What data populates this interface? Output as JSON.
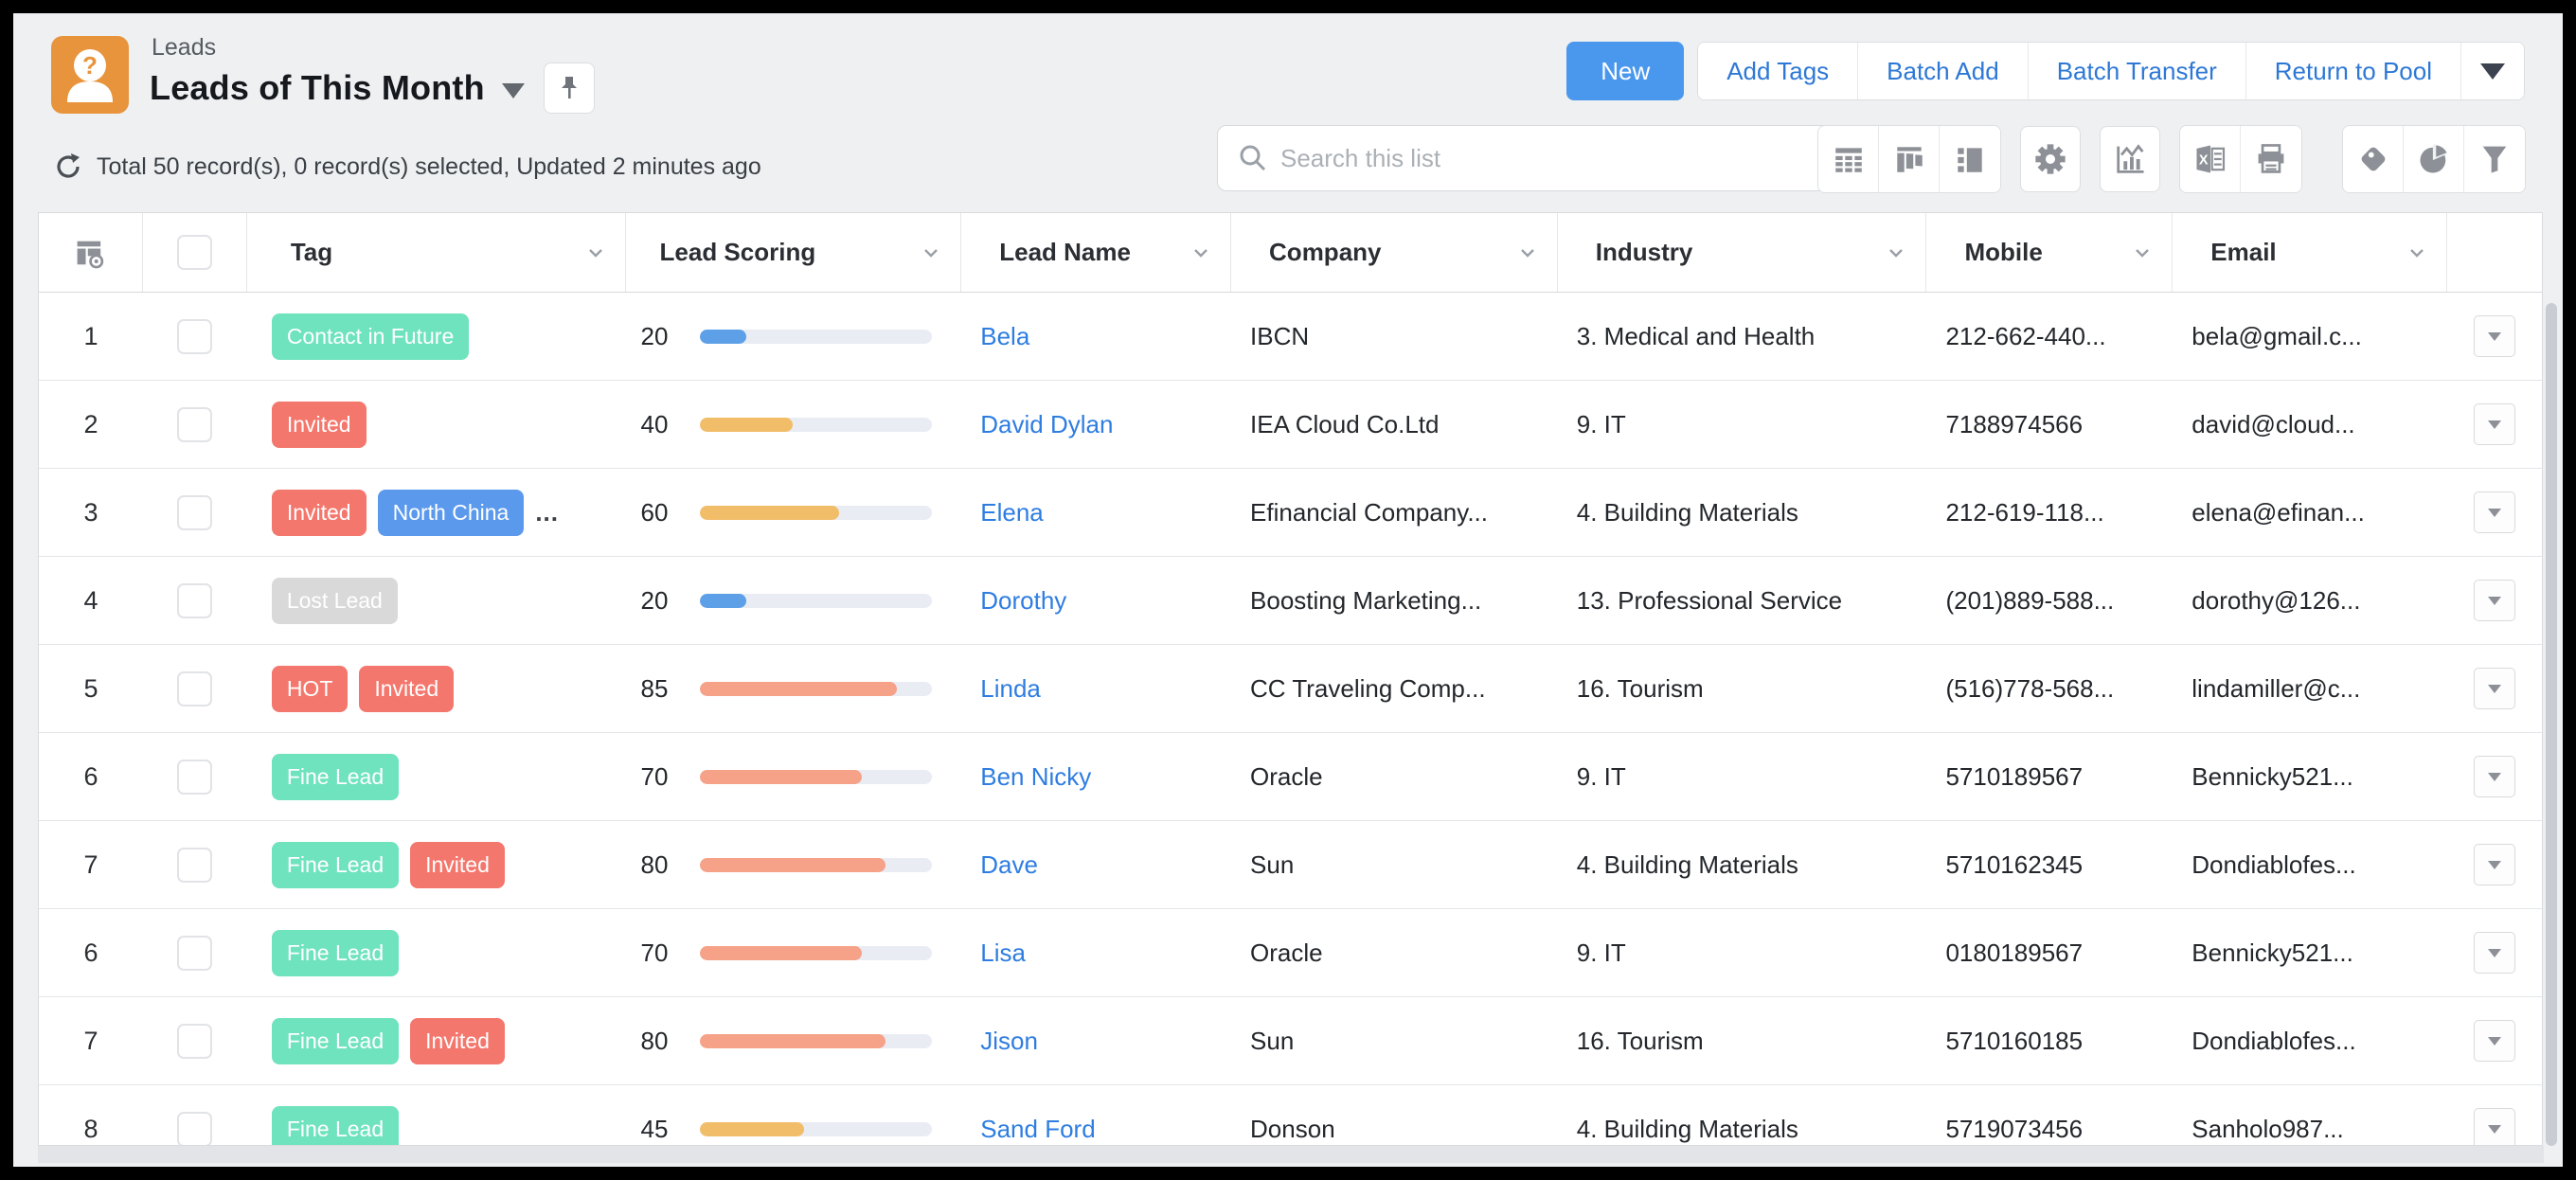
{
  "header": {
    "breadcrumb": "Leads",
    "title": "Leads of This Month",
    "status": "Total 50 record(s), 0 record(s) selected, Updated 2 minutes ago",
    "new_button": "New",
    "action_buttons": [
      "Add Tags",
      "Batch Add",
      "Batch Transfer",
      "Return to Pool"
    ],
    "search_placeholder": "Search this list"
  },
  "toolbar": {
    "icons": [
      "table-view-icon",
      "kanban-view-icon",
      "panel-view-icon",
      "settings-gear-icon",
      "chart-icon",
      "excel-export-icon",
      "print-icon",
      "tag-icon",
      "pie-chart-icon",
      "filter-funnel-icon"
    ]
  },
  "colors": {
    "accent_blue": "#4a97ee",
    "link_blue": "#2e7de1",
    "tag_green": "#6fe3bd",
    "tag_red": "#f4776d",
    "tag_blue": "#5b99ec",
    "tag_gray": "#d9d9d9",
    "bar_blue": "#5da0e8",
    "bar_orange": "#f2bd69",
    "bar_coral": "#f5a289"
  },
  "table": {
    "columns": [
      "Tag",
      "Lead Scoring",
      "Lead Name",
      "Company",
      "Industry",
      "Mobile",
      "Email"
    ],
    "rows": [
      {
        "index": "1",
        "tags": [
          {
            "label": "Contact in Future",
            "color": "green"
          }
        ],
        "more_tags": false,
        "score": 20,
        "score_color": "blue",
        "name": "Bela",
        "company": "IBCN",
        "industry": "3. Medical and Health",
        "mobile": "212-662-440...",
        "email": "bela@gmail.c..."
      },
      {
        "index": "2",
        "tags": [
          {
            "label": "Invited",
            "color": "red"
          }
        ],
        "more_tags": false,
        "score": 40,
        "score_color": "orange",
        "name": "David Dylan",
        "company": "IEA Cloud Co.Ltd",
        "industry": "9. IT",
        "mobile": "7188974566",
        "email": "david@cloud..."
      },
      {
        "index": "3",
        "tags": [
          {
            "label": "Invited",
            "color": "red"
          },
          {
            "label": "North China",
            "color": "blue"
          }
        ],
        "more_tags": true,
        "score": 60,
        "score_color": "orange",
        "name": "Elena",
        "company": "Efinancial Company...",
        "industry": "4. Building Materials",
        "mobile": "212-619-118...",
        "email": "elena@efinan..."
      },
      {
        "index": "4",
        "tags": [
          {
            "label": "Lost Lead",
            "color": "gray"
          }
        ],
        "more_tags": false,
        "score": 20,
        "score_color": "blue",
        "name": "Dorothy",
        "company": "Boosting Marketing...",
        "industry": "13. Professional Service",
        "mobile": "(201)889-588...",
        "email": "dorothy@126..."
      },
      {
        "index": "5",
        "tags": [
          {
            "label": "HOT",
            "color": "red"
          },
          {
            "label": "Invited",
            "color": "red"
          }
        ],
        "more_tags": false,
        "score": 85,
        "score_color": "coral",
        "name": "Linda",
        "company": "CC Traveling Comp...",
        "industry": "16. Tourism",
        "mobile": "(516)778-568...",
        "email": "lindamiller@c..."
      },
      {
        "index": "6",
        "tags": [
          {
            "label": "Fine Lead",
            "color": "green"
          }
        ],
        "more_tags": false,
        "score": 70,
        "score_color": "coral",
        "name": "Ben Nicky",
        "company": "Oracle",
        "industry": "9. IT",
        "mobile": "5710189567",
        "email": "Bennicky521..."
      },
      {
        "index": "7",
        "tags": [
          {
            "label": "Fine Lead",
            "color": "green"
          },
          {
            "label": "Invited",
            "color": "red"
          }
        ],
        "more_tags": false,
        "score": 80,
        "score_color": "coral",
        "name": "Dave",
        "company": "Sun",
        "industry": "4. Building Materials",
        "mobile": "5710162345",
        "email": "Dondiablofes..."
      },
      {
        "index": "6",
        "tags": [
          {
            "label": "Fine Lead",
            "color": "green"
          }
        ],
        "more_tags": false,
        "score": 70,
        "score_color": "coral",
        "name": "Lisa",
        "company": "Oracle",
        "industry": "9. IT",
        "mobile": "0180189567",
        "email": "Bennicky521..."
      },
      {
        "index": "7",
        "tags": [
          {
            "label": "Fine Lead",
            "color": "green"
          },
          {
            "label": "Invited",
            "color": "red"
          }
        ],
        "more_tags": false,
        "score": 80,
        "score_color": "coral",
        "name": "Jison",
        "company": "Sun",
        "industry": "16. Tourism",
        "mobile": "5710160185",
        "email": "Dondiablofes..."
      },
      {
        "index": "8",
        "tags": [
          {
            "label": "Fine Lead",
            "color": "green"
          }
        ],
        "more_tags": false,
        "score": 45,
        "score_color": "orange",
        "name": "Sand Ford",
        "company": "Donson",
        "industry": "4. Building Materials",
        "mobile": "5719073456",
        "email": "Sanholo987..."
      }
    ]
  }
}
